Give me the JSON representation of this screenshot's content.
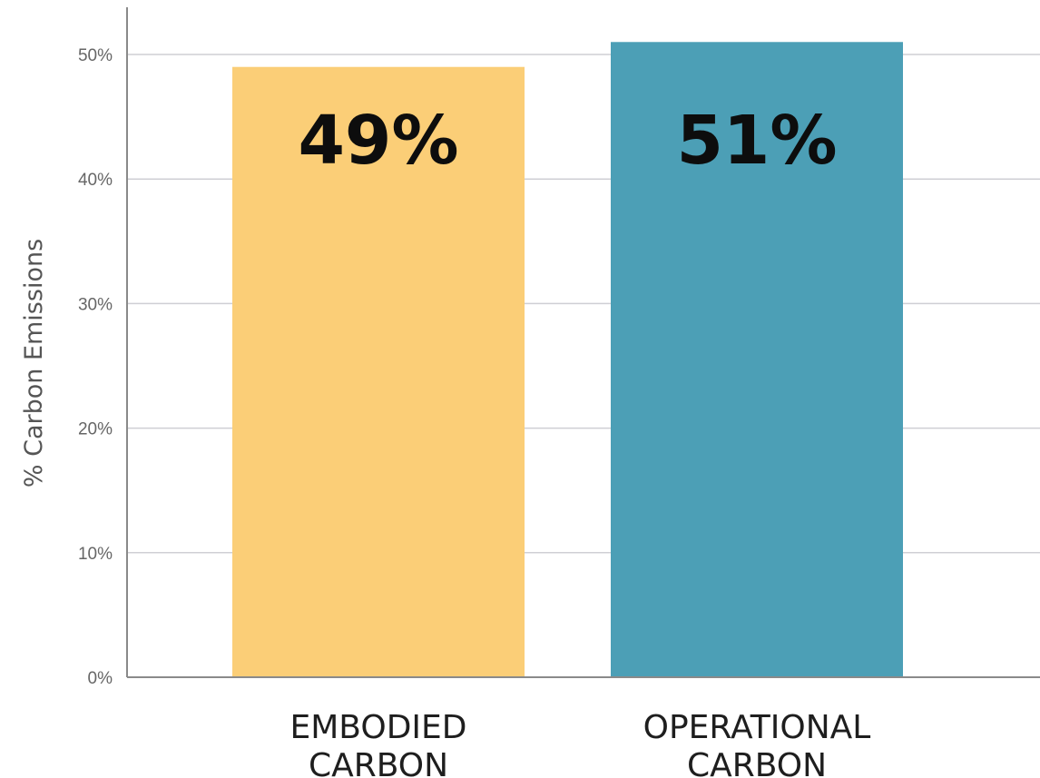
{
  "chart_data": {
    "type": "bar",
    "categories": [
      [
        "EMBODIED",
        "CARBON"
      ],
      [
        "OPERATIONAL",
        "CARBON"
      ]
    ],
    "values": [
      49,
      51
    ],
    "data_labels": [
      "49%",
      "51%"
    ],
    "colors": [
      "#fbce77",
      "#4c9fb6"
    ],
    "ylabel": "% Carbon Emissions",
    "ylim": [
      0,
      50
    ],
    "yticks": [
      0,
      10,
      20,
      30,
      40,
      50
    ],
    "ytick_labels": [
      "0%",
      "10%",
      "20%",
      "30%",
      "40%",
      "50%"
    ],
    "grid": true,
    "colors_other": {
      "grid": "#cfcfd4",
      "axis": "#8a8a8a"
    }
  }
}
